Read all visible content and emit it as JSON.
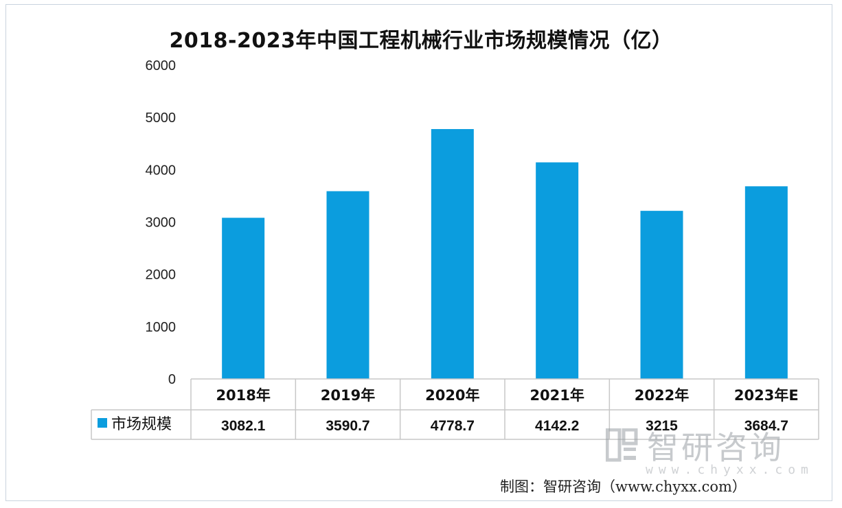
{
  "chart_data": {
    "type": "bar",
    "title": "2018-2023年中国工程机械行业市场规模情况（亿）",
    "categories": [
      "2018年",
      "2019年",
      "2020年",
      "2021年",
      "2022年",
      "2023年E"
    ],
    "series": [
      {
        "name": "市场规模",
        "values": [
          3082.1,
          3590.7,
          4778.7,
          4142.2,
          3215,
          3684.7
        ],
        "value_labels": [
          "3082.1",
          "3590.7",
          "4778.7",
          "4142.2",
          "3215",
          "3684.7"
        ],
        "color": "#0b9dde"
      }
    ],
    "ylim": [
      0,
      6000
    ],
    "yticks": [
      "0",
      "1000",
      "2000",
      "3000",
      "4000",
      "5000",
      "6000"
    ],
    "grid": false,
    "legend": "data-table",
    "data_table": true
  },
  "credit": "制图：智研咨询（www.chyxx.com）",
  "watermark": {
    "name": "智研咨询",
    "url": "www.chyxx.com"
  }
}
